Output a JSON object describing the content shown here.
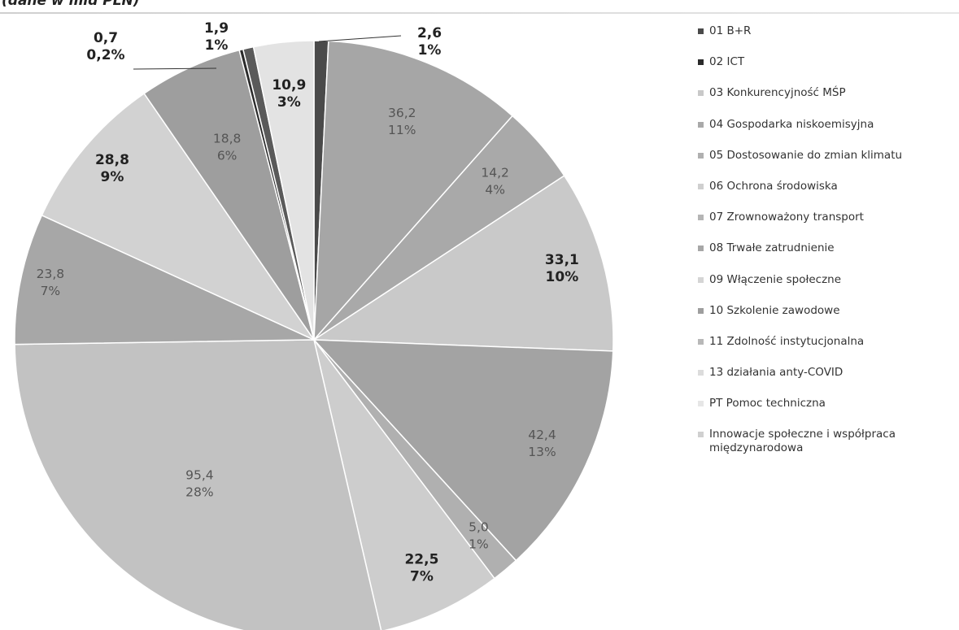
{
  "caption": "(dane w mld PLN)",
  "chart_data": {
    "type": "pie",
    "start_angle_deg": 0,
    "direction": "clockwise",
    "legend_position": "right",
    "slices": [
      {
        "name": "01 B+R",
        "value": 2.6,
        "label_value": "2,6",
        "label_pct": "1%",
        "color": "#4a4a4a",
        "bold": true
      },
      {
        "name": "Innowacje społeczne i współpraca międzynarodowa",
        "value": 36.2,
        "label_value": "36,2",
        "label_pct": "11%",
        "color": "#a6a6a6",
        "bold": false
      },
      {
        "name": "04 Gospodarka niskoemisyjna",
        "value": 14.2,
        "label_value": "14,2",
        "label_pct": "4%",
        "color": "#a9a9a9",
        "bold": false
      },
      {
        "name": "03 Konkurencyjność MŚP",
        "value": 33.1,
        "label_value": "33,1",
        "label_pct": "10%",
        "color": "#c9c9c9",
        "bold": true
      },
      {
        "name": "06 Ochrona środowiska",
        "value": 42.4,
        "label_value": "42,4",
        "label_pct": "13%",
        "color": "#a3a3a3",
        "bold": false
      },
      {
        "name": "05 Dostosowanie do zmian klimatu",
        "value": 5.0,
        "label_value": "5,0",
        "label_pct": "1%",
        "color": "#b0b0b0",
        "bold": false
      },
      {
        "name": "09 Włączenie społeczne",
        "value": 22.5,
        "label_value": "22,5",
        "label_pct": "7%",
        "color": "#cdcdcd",
        "bold": true
      },
      {
        "name": "07 Zrownoważony transport",
        "value": 95.4,
        "label_value": "95,4",
        "label_pct": "28%",
        "color": "#c2c2c2",
        "bold": false
      },
      {
        "name": "08 Trwałe zatrudnienie",
        "value": 23.8,
        "label_value": "23,8",
        "label_pct": "7%",
        "color": "#a7a7a7",
        "bold": false
      },
      {
        "name": "13 działania anty-COVID",
        "value": 28.8,
        "label_value": "28,8",
        "label_pct": "9%",
        "color": "#d2d2d2",
        "bold": true
      },
      {
        "name": "10 Szkolenie zawodowe",
        "value": 18.8,
        "label_value": "18,8",
        "label_pct": "6%",
        "color": "#9e9e9e",
        "bold": false
      },
      {
        "name": "02 ICT",
        "value": 0.7,
        "label_value": "0,7",
        "label_pct": "0,2%",
        "color": "#2b2b2b",
        "bold": true
      },
      {
        "name": "11 Zdolność instytucjonalna",
        "value": 1.9,
        "label_value": "1,9",
        "label_pct": "1%",
        "color": "#5a5a5a",
        "bold": true
      },
      {
        "name": "PT Pomoc techniczna",
        "value": 10.9,
        "label_value": "10,9",
        "label_pct": "3%",
        "color": "#e3e3e3",
        "bold": true
      }
    ],
    "legend": [
      {
        "label": "01 B+R",
        "color": "#4a4a4a"
      },
      {
        "label": "02 ICT",
        "color": "#2b2b2b"
      },
      {
        "label": "03 Konkurencyjność MŚP",
        "color": "#c9c9c9"
      },
      {
        "label": "04 Gospodarka niskoemisyjna",
        "color": "#a9a9a9"
      },
      {
        "label": "05 Dostosowanie do zmian klimatu",
        "color": "#b0b0b0"
      },
      {
        "label": "06 Ochrona środowiska",
        "color": "#cfcfcf"
      },
      {
        "label": "07 Zrownoważony transport",
        "color": "#b5b5b5"
      },
      {
        "label": "08 Trwałe zatrudnienie",
        "color": "#a7a7a7"
      },
      {
        "label": "09 Włączenie społeczne",
        "color": "#d5d5d5"
      },
      {
        "label": "10 Szkolenie zawodowe",
        "color": "#9e9e9e"
      },
      {
        "label": "11 Zdolność instytucjonalna",
        "color": "#b8b8b8"
      },
      {
        "label": "13 działania anty-COVID",
        "color": "#dcdcdc"
      },
      {
        "label": "PT Pomoc techniczna",
        "color": "#e6e6e6"
      },
      {
        "label": "Innowacje społeczne i współpraca międzynarodowa",
        "color": "#d0d0d0"
      }
    ]
  }
}
